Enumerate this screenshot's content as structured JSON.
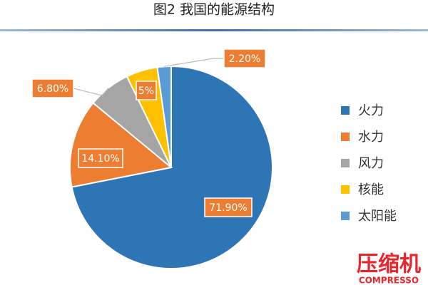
{
  "chart_data": {
    "type": "pie",
    "title": "图2 我国的能源结构",
    "categories": [
      "火力",
      "水力",
      "风力",
      "核能",
      "太阳能"
    ],
    "values": [
      71.9,
      14.1,
      6.8,
      5,
      2.2
    ],
    "value_labels": [
      "71.90%",
      "14.10%",
      "6.80%",
      "5%",
      "2.20%"
    ],
    "colors": [
      "#2e75b6",
      "#ed7d31",
      "#a5a5a5",
      "#ffc000",
      "#5b9bd5"
    ],
    "legend": "right",
    "watermark": [
      "压缩机",
      "COMPRESSO"
    ]
  }
}
